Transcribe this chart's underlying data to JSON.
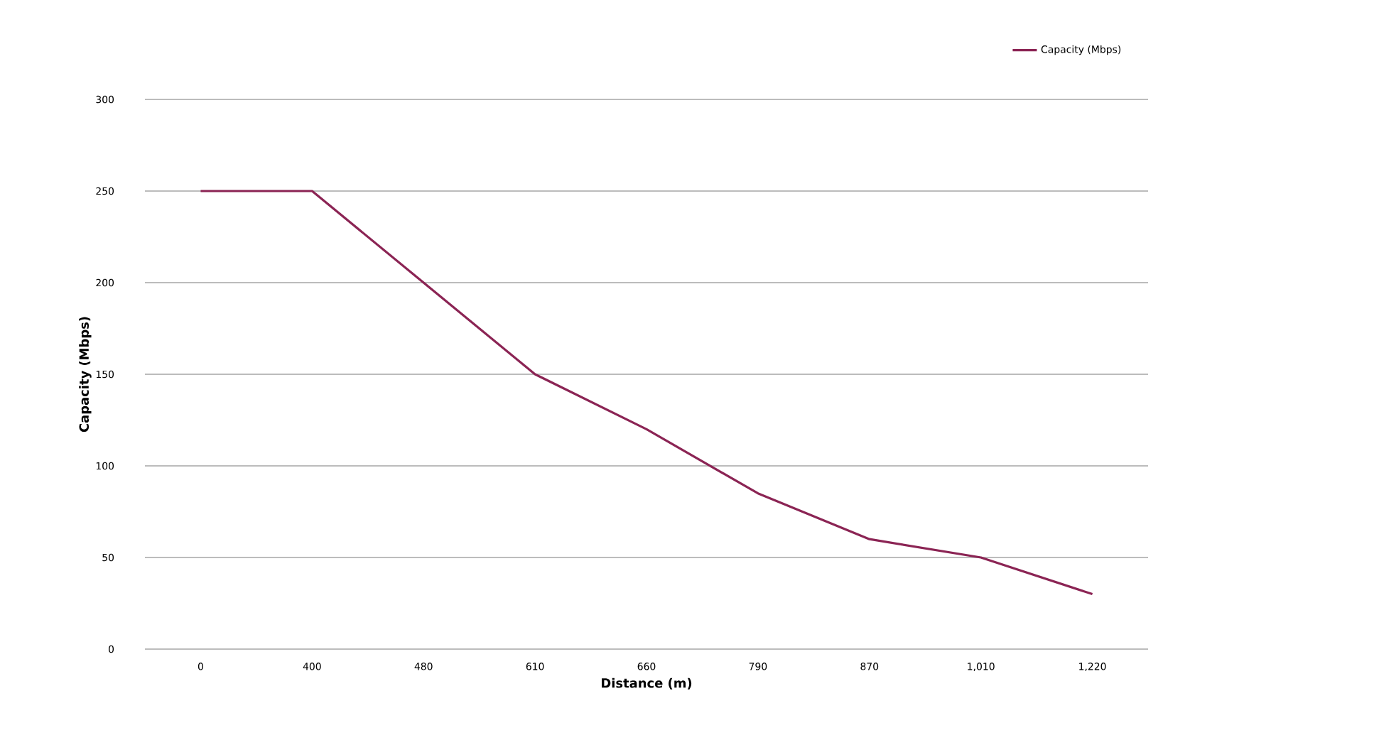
{
  "chart_data": {
    "type": "line",
    "xlabel": "Distance (m)",
    "ylabel": "Capacity (Mbps)",
    "categories": [
      "0",
      "400",
      "480",
      "610",
      "660",
      "790",
      "870",
      "1,010",
      "1,220"
    ],
    "series": [
      {
        "name": "Capacity (Mbps)",
        "color": "#8b2454",
        "values": [
          250,
          250,
          200,
          150,
          120,
          85,
          60,
          50,
          30
        ]
      }
    ],
    "ylim": [
      0,
      300
    ],
    "yticks": [
      0,
      50,
      100,
      150,
      200,
      250,
      300
    ],
    "grid": "y",
    "legend": "top right",
    "marker": "none",
    "line_style": "solid"
  }
}
